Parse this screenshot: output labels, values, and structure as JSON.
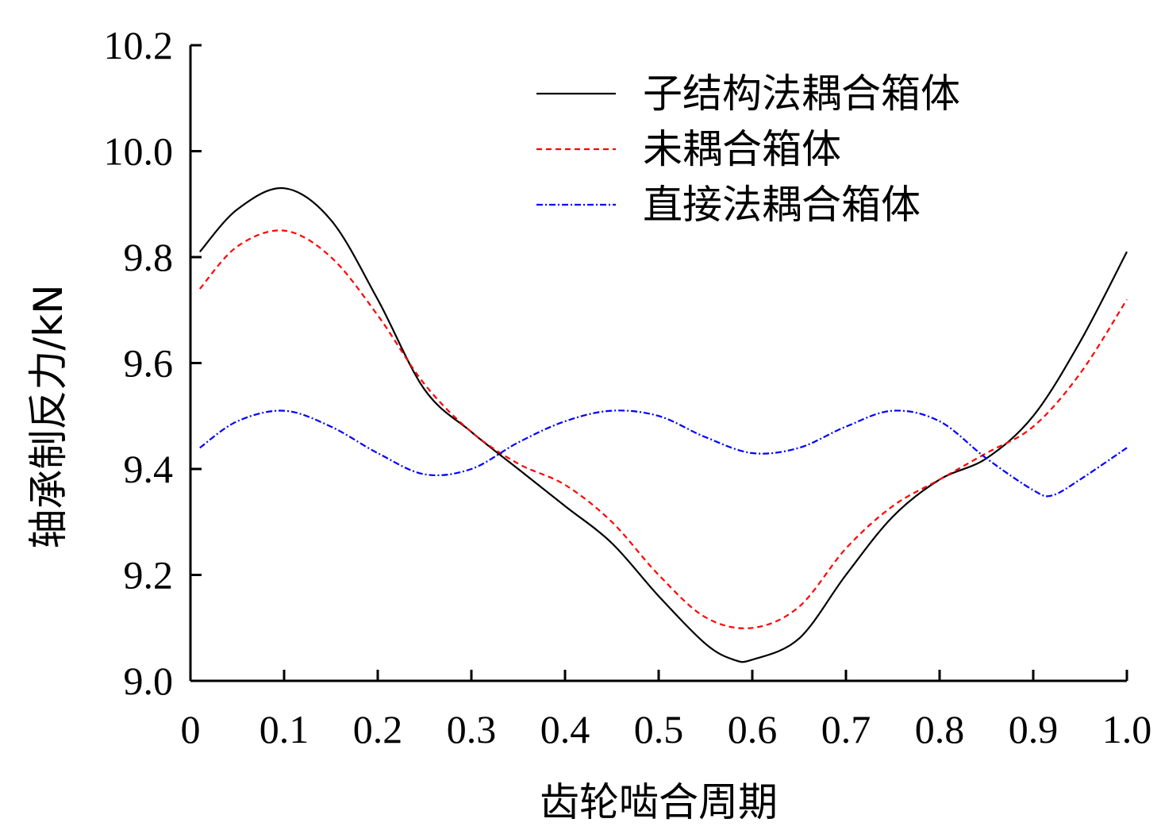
{
  "chart_data": {
    "type": "line",
    "title": "",
    "xlabel": "齿轮啮合周期",
    "ylabel": "轴承制反力/kN",
    "xlim": [
      0,
      1.0
    ],
    "ylim": [
      9.0,
      10.2
    ],
    "x_ticks": [
      "0",
      "0.1",
      "0.2",
      "0.3",
      "0.4",
      "0.5",
      "0.6",
      "0.7",
      "0.8",
      "0.9",
      "1.0"
    ],
    "y_ticks": [
      "9.0",
      "9.2",
      "9.4",
      "9.6",
      "9.8",
      "10.0",
      "10.2"
    ],
    "x_tick_values": [
      0,
      0.1,
      0.2,
      0.3,
      0.4,
      0.5,
      0.6,
      0.7,
      0.8,
      0.9,
      1.0
    ],
    "y_tick_values": [
      9.0,
      9.2,
      9.4,
      9.6,
      9.8,
      10.0,
      10.2
    ],
    "legend_position": "top-right",
    "grid": false,
    "series": [
      {
        "name": "子结构法耦合箱体",
        "color": "#000000",
        "dash": "solid",
        "x": [
          0.01,
          0.05,
          0.1,
          0.15,
          0.2,
          0.25,
          0.3,
          0.35,
          0.4,
          0.45,
          0.5,
          0.55,
          0.58,
          0.6,
          0.65,
          0.7,
          0.75,
          0.8,
          0.85,
          0.9,
          0.95,
          1.0
        ],
        "y": [
          9.81,
          9.89,
          9.93,
          9.87,
          9.72,
          9.55,
          9.47,
          9.4,
          9.33,
          9.26,
          9.16,
          9.07,
          9.04,
          9.04,
          9.08,
          9.2,
          9.31,
          9.38,
          9.42,
          9.5,
          9.64,
          9.81
        ]
      },
      {
        "name": "未耦合箱体",
        "color": "#ff0000",
        "dash": "dashed",
        "x": [
          0.01,
          0.05,
          0.1,
          0.15,
          0.2,
          0.25,
          0.3,
          0.35,
          0.4,
          0.45,
          0.5,
          0.55,
          0.6,
          0.65,
          0.7,
          0.75,
          0.8,
          0.85,
          0.9,
          0.95,
          1.0
        ],
        "y": [
          9.74,
          9.82,
          9.85,
          9.8,
          9.69,
          9.56,
          9.47,
          9.41,
          9.37,
          9.3,
          9.2,
          9.12,
          9.1,
          9.14,
          9.25,
          9.33,
          9.38,
          9.43,
          9.48,
          9.58,
          9.72
        ]
      },
      {
        "name": "直接法耦合箱体",
        "color": "#0000ff",
        "dash": "dashdot",
        "x": [
          0.01,
          0.05,
          0.1,
          0.15,
          0.2,
          0.25,
          0.3,
          0.35,
          0.4,
          0.45,
          0.5,
          0.55,
          0.6,
          0.65,
          0.7,
          0.75,
          0.8,
          0.85,
          0.9,
          0.92,
          0.95,
          1.0
        ],
        "y": [
          9.44,
          9.49,
          9.51,
          9.48,
          9.43,
          9.39,
          9.4,
          9.45,
          9.49,
          9.51,
          9.5,
          9.46,
          9.43,
          9.44,
          9.48,
          9.51,
          9.49,
          9.42,
          9.36,
          9.35,
          9.38,
          9.44
        ]
      }
    ]
  }
}
